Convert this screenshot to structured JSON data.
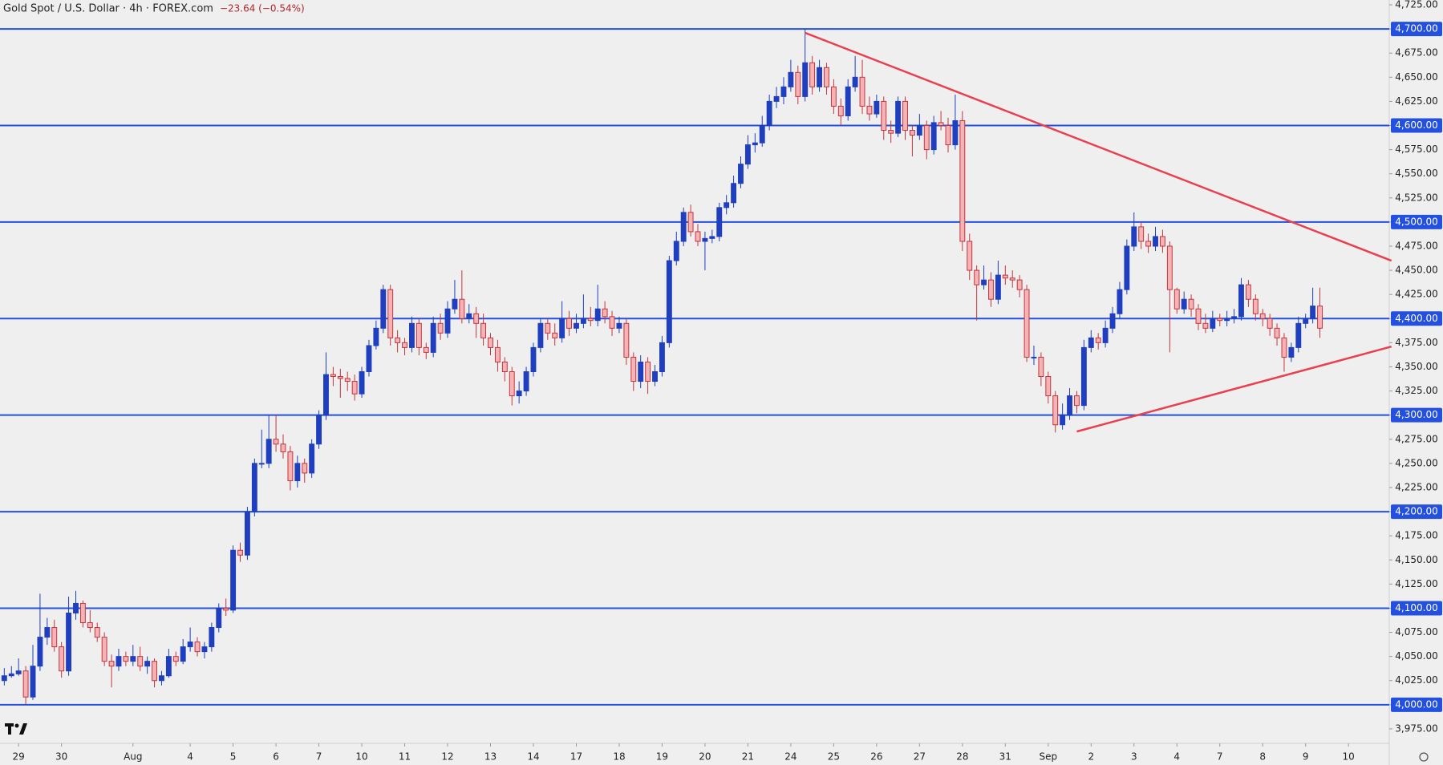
{
  "chart_data": {
    "type": "candlestick",
    "title": "Gold Spot / U.S. Dollar · 4h · FOREX.com",
    "change": "−23.64 (−0.54%)",
    "up_color": "#1f3fbf",
    "down_color": "#f5b3b6",
    "down_edge": "#c4353d",
    "level_color": "#2450e0",
    "trend_color": "#e8404f",
    "ylim": [
      3960,
      4730
    ],
    "xlim": [
      -0.6,
      193.7
    ],
    "yticks": [
      {
        "value": 3975,
        "label": "3,975.00"
      },
      {
        "value": 4000,
        "label": "4,000.00"
      },
      {
        "value": 4025,
        "label": "4,025.00"
      },
      {
        "value": 4050,
        "label": "4,050.00"
      },
      {
        "value": 4075,
        "label": "4,075.00"
      },
      {
        "value": 4100,
        "label": "4,100.00"
      },
      {
        "value": 4125,
        "label": "4,125.00"
      },
      {
        "value": 4150,
        "label": "4,150.00"
      },
      {
        "value": 4175,
        "label": "4,175.00"
      },
      {
        "value": 4200,
        "label": "4,200.00"
      },
      {
        "value": 4225,
        "label": "4,225.00"
      },
      {
        "value": 4250,
        "label": "4,250.00"
      },
      {
        "value": 4275,
        "label": "4,275.00"
      },
      {
        "value": 4300,
        "label": "4,300.00"
      },
      {
        "value": 4325,
        "label": "4,325.00"
      },
      {
        "value": 4350,
        "label": "4,350.00"
      },
      {
        "value": 4375,
        "label": "4,375.00"
      },
      {
        "value": 4400,
        "label": "4,400.00"
      },
      {
        "value": 4425,
        "label": "4,425.00"
      },
      {
        "value": 4450,
        "label": "4,450.00"
      },
      {
        "value": 4475,
        "label": "4,475.00"
      },
      {
        "value": 4500,
        "label": "4,500.00"
      },
      {
        "value": 4525,
        "label": "4,525.00"
      },
      {
        "value": 4550,
        "label": "4,550.00"
      },
      {
        "value": 4575,
        "label": "4,575.00"
      },
      {
        "value": 4600,
        "label": "4,600.00"
      },
      {
        "value": 4625,
        "label": "4,625.00"
      },
      {
        "value": 4650,
        "label": "4,650.00"
      },
      {
        "value": 4675,
        "label": "4,675.00"
      },
      {
        "value": 4700,
        "label": "4,700.00"
      },
      {
        "value": 4725,
        "label": "4,725.00"
      }
    ],
    "levels": [
      4000,
      4100,
      4200,
      4300,
      4400,
      4500,
      4600,
      4700
    ],
    "xticks": [
      {
        "value": 2,
        "label": "29"
      },
      {
        "value": 8,
        "label": "30"
      },
      {
        "value": 18,
        "label": "Aug"
      },
      {
        "value": 26,
        "label": "4"
      },
      {
        "value": 32,
        "label": "5"
      },
      {
        "value": 38,
        "label": "6"
      },
      {
        "value": 44,
        "label": "7"
      },
      {
        "value": 50,
        "label": "10"
      },
      {
        "value": 56,
        "label": "11"
      },
      {
        "value": 62,
        "label": "12"
      },
      {
        "value": 68,
        "label": "13"
      },
      {
        "value": 74,
        "label": "14"
      },
      {
        "value": 80,
        "label": "17"
      },
      {
        "value": 86,
        "label": "18"
      },
      {
        "value": 92,
        "label": "19"
      },
      {
        "value": 98,
        "label": "20"
      },
      {
        "value": 104,
        "label": "21"
      },
      {
        "value": 110,
        "label": "24"
      },
      {
        "value": 116,
        "label": "25"
      },
      {
        "value": 122,
        "label": "26"
      },
      {
        "value": 128,
        "label": "27"
      },
      {
        "value": 134,
        "label": "28"
      },
      {
        "value": 140,
        "label": "31"
      },
      {
        "value": 146,
        "label": "Sep"
      },
      {
        "value": 152,
        "label": "2"
      },
      {
        "value": 158,
        "label": "3"
      },
      {
        "value": 164,
        "label": "4"
      },
      {
        "value": 170,
        "label": "7"
      },
      {
        "value": 176,
        "label": "8"
      },
      {
        "value": 182,
        "label": "9"
      },
      {
        "value": 188,
        "label": "10"
      }
    ],
    "trendlines": [
      {
        "x": [
          112,
          194
        ],
        "y": [
          4696,
          4460
        ]
      },
      {
        "x": [
          150,
          194
        ],
        "y": [
          4283,
          4371
        ]
      }
    ],
    "ohlc": [
      [
        4025,
        4038,
        4020,
        4030
      ],
      [
        4030,
        4040,
        4028,
        4032
      ],
      [
        4032,
        4048,
        4030,
        4035
      ],
      [
        4035,
        4040,
        4000,
        4008
      ],
      [
        4008,
        4062,
        4005,
        4040
      ],
      [
        4040,
        4115,
        4035,
        4070
      ],
      [
        4070,
        4090,
        4062,
        4080
      ],
      [
        4080,
        4088,
        4055,
        4060
      ],
      [
        4060,
        4065,
        4028,
        4035
      ],
      [
        4035,
        4112,
        4030,
        4095
      ],
      [
        4095,
        4118,
        4088,
        4105
      ],
      [
        4105,
        4108,
        4080,
        4085
      ],
      [
        4085,
        4098,
        4075,
        4080
      ],
      [
        4080,
        4085,
        4065,
        4070
      ],
      [
        4070,
        4075,
        4040,
        4045
      ],
      [
        4045,
        4052,
        4018,
        4040
      ],
      [
        4040,
        4058,
        4035,
        4050
      ],
      [
        4050,
        4055,
        4040,
        4045
      ],
      [
        4045,
        4062,
        4040,
        4050
      ],
      [
        4050,
        4060,
        4035,
        4040
      ],
      [
        4040,
        4050,
        4032,
        4045
      ],
      [
        4045,
        4048,
        4018,
        4025
      ],
      [
        4025,
        4035,
        4020,
        4030
      ],
      [
        4030,
        4058,
        4028,
        4050
      ],
      [
        4050,
        4055,
        4040,
        4045
      ],
      [
        4045,
        4068,
        4042,
        4060
      ],
      [
        4060,
        4080,
        4055,
        4065
      ],
      [
        4065,
        4070,
        4050,
        4055
      ],
      [
        4055,
        4065,
        4048,
        4060
      ],
      [
        4060,
        4085,
        4055,
        4080
      ],
      [
        4080,
        4105,
        4075,
        4100
      ],
      [
        4100,
        4110,
        4092,
        4098
      ],
      [
        4098,
        4165,
        4095,
        4160
      ],
      [
        4160,
        4168,
        4148,
        4155
      ],
      [
        4155,
        4205,
        4150,
        4200
      ],
      [
        4200,
        4255,
        4195,
        4250
      ],
      [
        4250,
        4285,
        4245,
        4250
      ],
      [
        4250,
        4300,
        4245,
        4275
      ],
      [
        4275,
        4300,
        4262,
        4270
      ],
      [
        4270,
        4280,
        4255,
        4262
      ],
      [
        4262,
        4268,
        4222,
        4232
      ],
      [
        4232,
        4258,
        4225,
        4250
      ],
      [
        4250,
        4255,
        4230,
        4240
      ],
      [
        4240,
        4275,
        4235,
        4270
      ],
      [
        4270,
        4305,
        4265,
        4300
      ],
      [
        4300,
        4365,
        4295,
        4342
      ],
      [
        4342,
        4350,
        4330,
        4340
      ],
      [
        4340,
        4348,
        4318,
        4338
      ],
      [
        4338,
        4345,
        4325,
        4335
      ],
      [
        4335,
        4342,
        4315,
        4322
      ],
      [
        4322,
        4350,
        4318,
        4345
      ],
      [
        4345,
        4378,
        4340,
        4372
      ],
      [
        4372,
        4398,
        4368,
        4390
      ],
      [
        4390,
        4435,
        4385,
        4430
      ],
      [
        4430,
        4435,
        4372,
        4380
      ],
      [
        4380,
        4388,
        4365,
        4375
      ],
      [
        4375,
        4380,
        4362,
        4370
      ],
      [
        4370,
        4402,
        4365,
        4395
      ],
      [
        4395,
        4400,
        4362,
        4370
      ],
      [
        4370,
        4375,
        4358,
        4365
      ],
      [
        4365,
        4402,
        4360,
        4395
      ],
      [
        4395,
        4405,
        4378,
        4385
      ],
      [
        4385,
        4418,
        4380,
        4410
      ],
      [
        4410,
        4440,
        4405,
        4420
      ],
      [
        4420,
        4450,
        4395,
        4400
      ],
      [
        4400,
        4415,
        4395,
        4405
      ],
      [
        4405,
        4412,
        4380,
        4395
      ],
      [
        4395,
        4405,
        4372,
        4380
      ],
      [
        4380,
        4385,
        4362,
        4370
      ],
      [
        4370,
        4378,
        4345,
        4355
      ],
      [
        4355,
        4360,
        4335,
        4345
      ],
      [
        4345,
        4350,
        4310,
        4320
      ],
      [
        4320,
        4335,
        4312,
        4325
      ],
      [
        4325,
        4350,
        4320,
        4345
      ],
      [
        4345,
        4375,
        4340,
        4370
      ],
      [
        4370,
        4400,
        4365,
        4395
      ],
      [
        4395,
        4400,
        4378,
        4385
      ],
      [
        4385,
        4395,
        4372,
        4380
      ],
      [
        4380,
        4418,
        4375,
        4400
      ],
      [
        4400,
        4408,
        4382,
        4390
      ],
      [
        4390,
        4405,
        4385,
        4395
      ],
      [
        4395,
        4425,
        4390,
        4400
      ],
      [
        4400,
        4412,
        4392,
        4398
      ],
      [
        4398,
        4435,
        4392,
        4410
      ],
      [
        4410,
        4418,
        4395,
        4402
      ],
      [
        4402,
        4408,
        4382,
        4390
      ],
      [
        4390,
        4402,
        4385,
        4395
      ],
      [
        4395,
        4400,
        4352,
        4360
      ],
      [
        4360,
        4365,
        4325,
        4335
      ],
      [
        4335,
        4362,
        4328,
        4355
      ],
      [
        4355,
        4360,
        4322,
        4335
      ],
      [
        4335,
        4352,
        4330,
        4345
      ],
      [
        4345,
        4382,
        4340,
        4375
      ],
      [
        4375,
        4465,
        4370,
        4460
      ],
      [
        4460,
        4490,
        4455,
        4480
      ],
      [
        4480,
        4515,
        4475,
        4510
      ],
      [
        4510,
        4518,
        4485,
        4490
      ],
      [
        4490,
        4498,
        4475,
        4480
      ],
      [
        4480,
        4490,
        4450,
        4483
      ],
      [
        4483,
        4492,
        4478,
        4485
      ],
      [
        4485,
        4520,
        4480,
        4515
      ],
      [
        4515,
        4528,
        4508,
        4520
      ],
      [
        4520,
        4548,
        4515,
        4540
      ],
      [
        4540,
        4568,
        4535,
        4560
      ],
      [
        4560,
        4590,
        4555,
        4580
      ],
      [
        4580,
        4592,
        4572,
        4582
      ],
      [
        4582,
        4610,
        4578,
        4600
      ],
      [
        4600,
        4632,
        4595,
        4625
      ],
      [
        4625,
        4640,
        4618,
        4630
      ],
      [
        4630,
        4650,
        4622,
        4640
      ],
      [
        4640,
        4668,
        4635,
        4655
      ],
      [
        4655,
        4662,
        4622,
        4630
      ],
      [
        4630,
        4700,
        4625,
        4665
      ],
      [
        4665,
        4672,
        4632,
        4640
      ],
      [
        4640,
        4668,
        4635,
        4660
      ],
      [
        4660,
        4665,
        4632,
        4640
      ],
      [
        4640,
        4648,
        4612,
        4620
      ],
      [
        4620,
        4628,
        4600,
        4610
      ],
      [
        4610,
        4648,
        4605,
        4640
      ],
      [
        4640,
        4672,
        4635,
        4650
      ],
      [
        4650,
        4668,
        4612,
        4620
      ],
      [
        4620,
        4630,
        4605,
        4612
      ],
      [
        4612,
        4632,
        4608,
        4625
      ],
      [
        4625,
        4630,
        4585,
        4595
      ],
      [
        4595,
        4605,
        4582,
        4592
      ],
      [
        4592,
        4630,
        4588,
        4625
      ],
      [
        4625,
        4630,
        4585,
        4595
      ],
      [
        4595,
        4600,
        4568,
        4590
      ],
      [
        4590,
        4612,
        4585,
        4600
      ],
      [
        4600,
        4605,
        4565,
        4575
      ],
      [
        4575,
        4610,
        4570,
        4603
      ],
      [
        4603,
        4615,
        4595,
        4600
      ],
      [
        4600,
        4608,
        4572,
        4580
      ],
      [
        4580,
        4632,
        4575,
        4605
      ],
      [
        4605,
        4615,
        4470,
        4480
      ],
      [
        4480,
        4488,
        4440,
        4450
      ],
      [
        4450,
        4455,
        4398,
        4435
      ],
      [
        4435,
        4455,
        4430,
        4440
      ],
      [
        4440,
        4448,
        4412,
        4420
      ],
      [
        4420,
        4460,
        4415,
        4445
      ],
      [
        4445,
        4455,
        4435,
        4442
      ],
      [
        4442,
        4450,
        4432,
        4440
      ],
      [
        4440,
        4445,
        4422,
        4430
      ],
      [
        4430,
        4435,
        4355,
        4360
      ],
      [
        4360,
        4372,
        4352,
        4360
      ],
      [
        4360,
        4365,
        4330,
        4340
      ],
      [
        4340,
        4345,
        4312,
        4320
      ],
      [
        4320,
        4325,
        4282,
        4290
      ],
      [
        4290,
        4312,
        4285,
        4300
      ],
      [
        4300,
        4328,
        4295,
        4320
      ],
      [
        4320,
        4325,
        4302,
        4310
      ],
      [
        4310,
        4378,
        4305,
        4370
      ],
      [
        4370,
        4388,
        4365,
        4380
      ],
      [
        4380,
        4385,
        4368,
        4375
      ],
      [
        4375,
        4398,
        4370,
        4390
      ],
      [
        4390,
        4412,
        4385,
        4405
      ],
      [
        4405,
        4438,
        4400,
        4430
      ],
      [
        4430,
        4482,
        4425,
        4475
      ],
      [
        4475,
        4510,
        4470,
        4495
      ],
      [
        4495,
        4500,
        4472,
        4480
      ],
      [
        4480,
        4488,
        4468,
        4475
      ],
      [
        4475,
        4495,
        4470,
        4485
      ],
      [
        4485,
        4492,
        4468,
        4475
      ],
      [
        4475,
        4480,
        4365,
        4430
      ],
      [
        4430,
        4432,
        4405,
        4410
      ],
      [
        4410,
        4428,
        4405,
        4420
      ],
      [
        4420,
        4425,
        4402,
        4410
      ],
      [
        4410,
        4415,
        4388,
        4395
      ],
      [
        4395,
        4405,
        4385,
        4390
      ],
      [
        4390,
        4408,
        4386,
        4400
      ],
      [
        4400,
        4405,
        4392,
        4398
      ],
      [
        4398,
        4408,
        4392,
        4400
      ],
      [
        4400,
        4410,
        4395,
        4402
      ],
      [
        4402,
        4442,
        4398,
        4435
      ],
      [
        4435,
        4440,
        4412,
        4420
      ],
      [
        4420,
        4425,
        4398,
        4405
      ],
      [
        4405,
        4410,
        4392,
        4400
      ],
      [
        4400,
        4405,
        4382,
        4390
      ],
      [
        4390,
        4395,
        4372,
        4380
      ],
      [
        4380,
        4385,
        4345,
        4360
      ],
      [
        4360,
        4375,
        4355,
        4370
      ],
      [
        4370,
        4402,
        4365,
        4395
      ],
      [
        4395,
        4405,
        4390,
        4400
      ],
      [
        4400,
        4432,
        4395,
        4413
      ],
      [
        4413,
        4432,
        4380,
        4390
      ]
    ]
  }
}
